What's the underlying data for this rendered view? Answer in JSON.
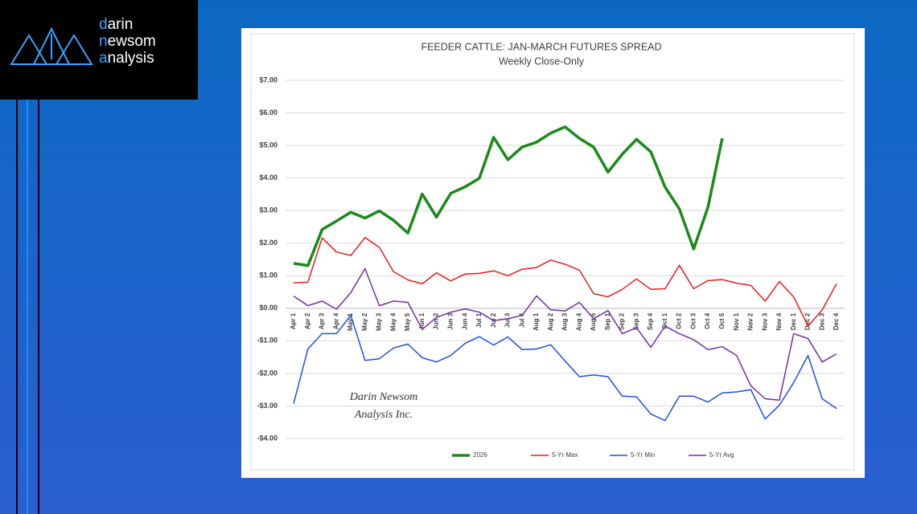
{
  "brand": {
    "lines": [
      "darin",
      "newsom",
      "analysis"
    ]
  },
  "watermark": [
    "Darin Newsom",
    "Analysis Inc."
  ],
  "chart_data": {
    "type": "line",
    "title": "FEEDER CATTLE: JAN-MARCH FUTURES SPREAD",
    "subtitle": "Weekly Close-Only",
    "categories": [
      "Apr 1",
      "Apr 2",
      "Apr 3",
      "Apr 4",
      "May 1",
      "May 2",
      "May 3",
      "May 4",
      "May 5",
      "Jun 1",
      "Jun 2",
      "Jun 3",
      "Jun 4",
      "Jul 1",
      "Jul 2",
      "Jul 3",
      "Jul 4",
      "Aug 1",
      "Aug 2",
      "Aug 3",
      "Aug 4",
      "Aug 5",
      "Sep 1",
      "Sep 2",
      "Sep 3",
      "Sep 4",
      "Oct 1",
      "Oct 2",
      "Oct 3",
      "Oct 4",
      "Oct 5",
      "Nov 1",
      "Nov 2",
      "Nov 3",
      "Nov 4",
      "Dec 1",
      "Dec 2",
      "Dec 3",
      "Dec 4"
    ],
    "ylim": [
      -4,
      7
    ],
    "yticks": [
      {
        "value": -4,
        "label": "-$4.00"
      },
      {
        "value": -3,
        "label": "-$3.00"
      },
      {
        "value": -2,
        "label": "-$2.00"
      },
      {
        "value": -1,
        "label": "-$1.00"
      },
      {
        "value": 0,
        "label": "$0.00"
      },
      {
        "value": 1,
        "label": "$1.00"
      },
      {
        "value": 2,
        "label": "$2.00"
      },
      {
        "value": 3,
        "label": "$3.00"
      },
      {
        "value": 4,
        "label": "$4.00"
      },
      {
        "value": 5,
        "label": "$5.00"
      },
      {
        "value": 6,
        "label": "$6.00"
      },
      {
        "value": 7,
        "label": "$7.00"
      }
    ],
    "grid": true,
    "legend": "bottom",
    "series": [
      {
        "name": "2026",
        "color": "#1a8a1a",
        "values": [
          1.38,
          1.31,
          2.42,
          2.68,
          2.95,
          2.77,
          2.99,
          2.7,
          2.31,
          3.51,
          2.8,
          3.53,
          3.73,
          3.99,
          5.25,
          4.56,
          4.95,
          5.1,
          5.38,
          5.57,
          5.22,
          4.95,
          4.18,
          4.73,
          5.19,
          4.8,
          3.72,
          3.05,
          1.82,
          3.1,
          5.22,
          null,
          null,
          null,
          null,
          null,
          null,
          null,
          null
        ]
      },
      {
        "name": "5-Yr Max",
        "color": "#e81c1c",
        "values": [
          0.78,
          0.8,
          2.16,
          1.73,
          1.62,
          2.17,
          1.87,
          1.12,
          0.87,
          0.75,
          1.09,
          0.84,
          1.05,
          1.07,
          1.15,
          1.0,
          1.2,
          1.25,
          1.48,
          1.35,
          1.17,
          0.45,
          0.35,
          0.58,
          0.9,
          0.58,
          0.6,
          1.32,
          0.6,
          0.85,
          0.88,
          0.77,
          0.7,
          0.22,
          0.82,
          0.35,
          -0.55,
          -0.05,
          0.75
        ]
      },
      {
        "name": "5-Yr Min",
        "color": "#1f4fe0",
        "values": [
          -2.93,
          -1.25,
          -0.78,
          -0.78,
          -0.22,
          -1.6,
          -1.55,
          -1.22,
          -1.1,
          -1.52,
          -1.65,
          -1.45,
          -1.08,
          -0.87,
          -1.13,
          -0.88,
          -1.27,
          -1.25,
          -1.12,
          -1.62,
          -2.1,
          -2.05,
          -2.1,
          -2.7,
          -2.72,
          -3.25,
          -3.45,
          -2.7,
          -2.7,
          -2.88,
          -2.6,
          -2.57,
          -2.5,
          -3.4,
          -2.98,
          -2.28,
          -1.45,
          -2.78,
          -3.08
        ]
      },
      {
        "name": "5-Yr Avg",
        "color": "#7030a0",
        "values": [
          0.37,
          0.08,
          0.22,
          -0.03,
          0.48,
          1.22,
          0.08,
          0.22,
          0.18,
          -0.65,
          -0.28,
          -0.12,
          -0.02,
          -0.12,
          -0.38,
          -0.32,
          -0.22,
          0.38,
          -0.05,
          -0.08,
          0.18,
          -0.32,
          -0.07,
          -0.78,
          -0.6,
          -1.2,
          -0.55,
          -0.78,
          -0.97,
          -1.27,
          -1.18,
          -1.45,
          -2.38,
          -2.78,
          -2.82,
          -0.78,
          -0.93,
          -1.65,
          -1.4
        ]
      }
    ]
  }
}
